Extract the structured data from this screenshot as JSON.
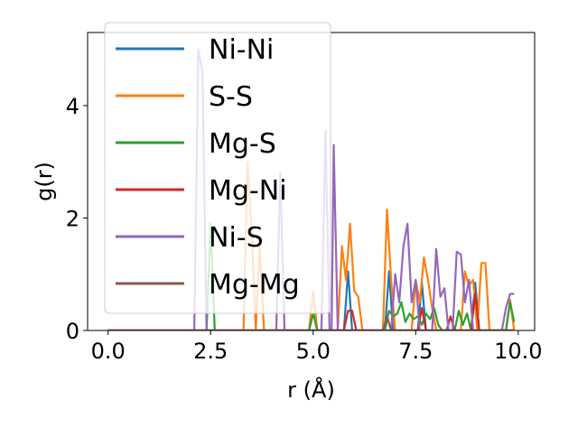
{
  "chart_data": {
    "type": "line",
    "xlabel": "r (Å)",
    "ylabel": "g(r)",
    "xlim": [
      -0.5,
      10.4
    ],
    "ylim": [
      0,
      5.3
    ],
    "xticks": [
      "0.0",
      "2.5",
      "5.0",
      "7.5",
      "10.0"
    ],
    "xtick_values": [
      0.0,
      2.5,
      5.0,
      7.5,
      10.0
    ],
    "yticks": [
      "0",
      "2",
      "4"
    ],
    "ytick_values": [
      0,
      2,
      4
    ],
    "grid": false,
    "legend_position": "top-left",
    "series": [
      {
        "name": "Ni-Ni",
        "color": "#1f77b4",
        "points": [
          [
            0,
            0
          ],
          [
            5.75,
            0
          ],
          [
            5.85,
            1.05
          ],
          [
            5.95,
            0
          ],
          [
            6.75,
            0
          ],
          [
            6.85,
            1.05
          ],
          [
            6.95,
            0
          ],
          [
            7.55,
            0
          ],
          [
            7.65,
            0.85
          ],
          [
            7.75,
            0
          ],
          [
            8.85,
            0
          ],
          [
            8.95,
            0.85
          ],
          [
            9.05,
            0
          ],
          [
            9.9,
            0
          ]
        ]
      },
      {
        "name": "S-S",
        "color": "#ff7f0e",
        "points": [
          [
            0,
            0
          ],
          [
            3.3,
            0
          ],
          [
            3.4,
            3.0
          ],
          [
            3.5,
            1.8
          ],
          [
            3.6,
            0
          ],
          [
            3.7,
            1.5
          ],
          [
            3.8,
            0
          ],
          [
            4.9,
            0
          ],
          [
            5.0,
            0.7
          ],
          [
            5.1,
            0
          ],
          [
            5.6,
            0
          ],
          [
            5.7,
            1.5
          ],
          [
            5.8,
            0.9
          ],
          [
            5.9,
            1.9
          ],
          [
            6.0,
            0.7
          ],
          [
            6.1,
            0.6
          ],
          [
            6.2,
            0
          ],
          [
            6.7,
            0
          ],
          [
            6.8,
            2.15
          ],
          [
            6.9,
            0.9
          ],
          [
            7.0,
            0
          ],
          [
            7.4,
            0
          ],
          [
            7.5,
            0.9
          ],
          [
            7.6,
            0.5
          ],
          [
            7.7,
            1.3
          ],
          [
            7.8,
            0.9
          ],
          [
            7.9,
            0.4
          ],
          [
            8.0,
            0
          ],
          [
            8.6,
            0
          ],
          [
            8.7,
            1.05
          ],
          [
            8.8,
            0.8
          ],
          [
            8.9,
            0.9
          ],
          [
            9.0,
            0
          ],
          [
            9.1,
            1.2
          ],
          [
            9.2,
            1.2
          ],
          [
            9.3,
            0
          ],
          [
            9.7,
            0
          ],
          [
            9.8,
            0.55
          ],
          [
            9.9,
            0
          ]
        ]
      },
      {
        "name": "Mg-S",
        "color": "#2ca02c",
        "points": [
          [
            0,
            0
          ],
          [
            2.4,
            0
          ],
          [
            2.5,
            1.9
          ],
          [
            2.6,
            0
          ],
          [
            4.9,
            0
          ],
          [
            5.0,
            0.3
          ],
          [
            5.1,
            0
          ],
          [
            6.75,
            0
          ],
          [
            6.85,
            0.35
          ],
          [
            6.95,
            0.25
          ],
          [
            7.05,
            0.3
          ],
          [
            7.15,
            0.5
          ],
          [
            7.25,
            0.15
          ],
          [
            7.35,
            0.3
          ],
          [
            7.45,
            0.2
          ],
          [
            7.55,
            0.25
          ],
          [
            7.65,
            0.1
          ],
          [
            7.75,
            0.3
          ],
          [
            7.85,
            0.2
          ],
          [
            7.95,
            0.4
          ],
          [
            8.05,
            0.1
          ],
          [
            8.15,
            0
          ],
          [
            8.45,
            0
          ],
          [
            8.55,
            0.35
          ],
          [
            8.65,
            0.1
          ],
          [
            8.75,
            0.3
          ],
          [
            8.85,
            0
          ],
          [
            9.7,
            0
          ],
          [
            9.8,
            0.5
          ],
          [
            9.9,
            0.15
          ]
        ]
      },
      {
        "name": "Mg-Ni",
        "color": "#d62728",
        "points": [
          [
            0,
            0
          ],
          [
            5.75,
            0
          ],
          [
            5.85,
            0.35
          ],
          [
            5.95,
            0.35
          ],
          [
            6.05,
            0
          ],
          [
            7.55,
            0
          ],
          [
            7.65,
            0.4
          ],
          [
            7.75,
            0
          ],
          [
            8.25,
            0
          ],
          [
            8.35,
            0.25
          ],
          [
            8.45,
            0
          ],
          [
            8.85,
            0
          ],
          [
            8.95,
            0.65
          ],
          [
            9.05,
            0
          ],
          [
            9.9,
            0
          ]
        ]
      },
      {
        "name": "Ni-S",
        "color": "#9467bd",
        "points": [
          [
            0,
            0
          ],
          [
            2.1,
            0
          ],
          [
            2.2,
            5.0
          ],
          [
            2.3,
            4.6
          ],
          [
            2.4,
            0
          ],
          [
            4.1,
            0
          ],
          [
            4.2,
            2.8
          ],
          [
            4.3,
            0
          ],
          [
            5.2,
            0
          ],
          [
            5.3,
            3.55
          ],
          [
            5.4,
            0
          ],
          [
            5.45,
            0
          ],
          [
            5.5,
            3.3
          ],
          [
            5.6,
            0
          ],
          [
            6.9,
            0
          ],
          [
            7.0,
            1.0
          ],
          [
            7.1,
            0.5
          ],
          [
            7.2,
            1.5
          ],
          [
            7.3,
            1.9
          ],
          [
            7.4,
            0.5
          ],
          [
            7.5,
            0.9
          ],
          [
            7.6,
            0
          ],
          [
            7.9,
            0
          ],
          [
            8.0,
            1.45
          ],
          [
            8.1,
            0.6
          ],
          [
            8.2,
            0.75
          ],
          [
            8.3,
            0
          ],
          [
            8.4,
            0
          ],
          [
            8.5,
            1.4
          ],
          [
            8.6,
            1.35
          ],
          [
            8.7,
            0.5
          ],
          [
            8.8,
            0.9
          ],
          [
            8.9,
            0
          ],
          [
            9.6,
            0
          ],
          [
            9.7,
            0.4
          ],
          [
            9.8,
            0.65
          ],
          [
            9.9,
            0.65
          ]
        ]
      },
      {
        "name": "Mg-Mg",
        "color": "#8c564b",
        "points": [
          [
            0,
            0
          ],
          [
            6.7,
            0
          ],
          [
            6.8,
            0.25
          ],
          [
            6.9,
            0
          ],
          [
            9.9,
            0
          ]
        ]
      }
    ]
  }
}
